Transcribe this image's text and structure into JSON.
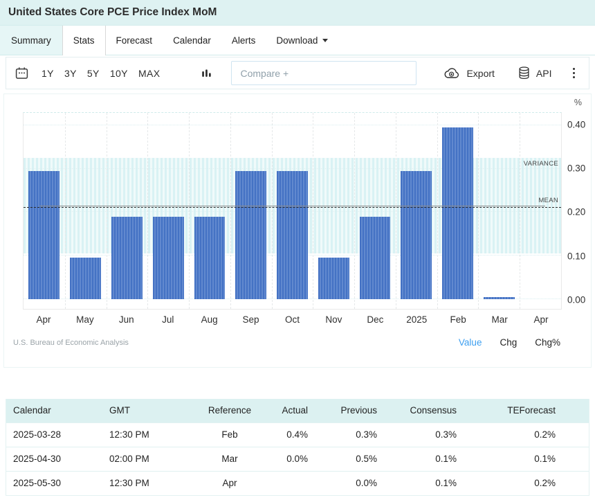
{
  "header": {
    "title": "United States Core PCE Price Index MoM"
  },
  "tabs": [
    {
      "label": "Summary",
      "active": false
    },
    {
      "label": "Stats",
      "active": true
    },
    {
      "label": "Forecast",
      "active": false
    },
    {
      "label": "Calendar",
      "active": false
    },
    {
      "label": "Alerts",
      "active": false
    },
    {
      "label": "Download",
      "active": false,
      "has_dropdown": true
    }
  ],
  "toolbar": {
    "ranges": [
      "1Y",
      "3Y",
      "5Y",
      "10Y",
      "MAX"
    ],
    "compare_placeholder": "Compare +",
    "export_label": "Export",
    "api_label": "API",
    "icons": [
      "calendar-icon",
      "bar-chart-icon",
      "cloud-export-icon",
      "database-icon",
      "kebab-menu-icon"
    ]
  },
  "chart_data": {
    "type": "bar",
    "title": "United States Core PCE Price Index MoM",
    "unit": "%",
    "categories": [
      "Apr",
      "May",
      "Jun",
      "Jul",
      "Aug",
      "Sep",
      "Oct",
      "Nov",
      "Dec",
      "2025",
      "Feb",
      "Mar",
      "Apr"
    ],
    "values": [
      0.295,
      0.095,
      0.19,
      0.19,
      0.19,
      0.295,
      0.295,
      0.095,
      0.19,
      0.295,
      0.395,
      0.005,
      null
    ],
    "ylim": [
      -0.022,
      0.428
    ],
    "yticks": [
      0.0,
      0.1,
      0.2,
      0.3,
      0.4
    ],
    "ytick_labels": [
      "0.00",
      "0.10",
      "0.20",
      "0.30",
      "0.40"
    ],
    "mean": 0.21,
    "variance_band": [
      0.105,
      0.325
    ],
    "mean_label": "MEAN",
    "band_label": "VARIANCE",
    "grid": true,
    "legend_position": "none",
    "bar_color": "#4472c4",
    "bar_color_alt": "#6189cf",
    "band_color": "#d9f2f4",
    "band_color_alt": "#f0fafa"
  },
  "chart_footer": {
    "source": "U.S. Bureau of Economic Analysis",
    "links": [
      "Value",
      "Chg",
      "Chg%"
    ],
    "active_link": "Value"
  },
  "table": {
    "headers": [
      "Calendar",
      "GMT",
      "Reference",
      "Actual",
      "Previous",
      "Consensus",
      "TEForecast"
    ],
    "rows": [
      [
        "2025-03-28",
        "12:30 PM",
        "Feb",
        "0.4%",
        "0.3%",
        "0.3%",
        "0.2%"
      ],
      [
        "2025-04-30",
        "02:00 PM",
        "Mar",
        "0.0%",
        "0.5%",
        "0.1%",
        "0.1%"
      ],
      [
        "2025-05-30",
        "12:30 PM",
        "Apr",
        "",
        "0.0%",
        "0.1%",
        "0.2%"
      ]
    ]
  },
  "colors": {
    "title_bar_bg": "#def2f2",
    "table_header_bg": "#dcf1f1",
    "bar": "#4472c4",
    "variance_band": "#e2f5f6",
    "link_active": "#3d9ff0"
  }
}
